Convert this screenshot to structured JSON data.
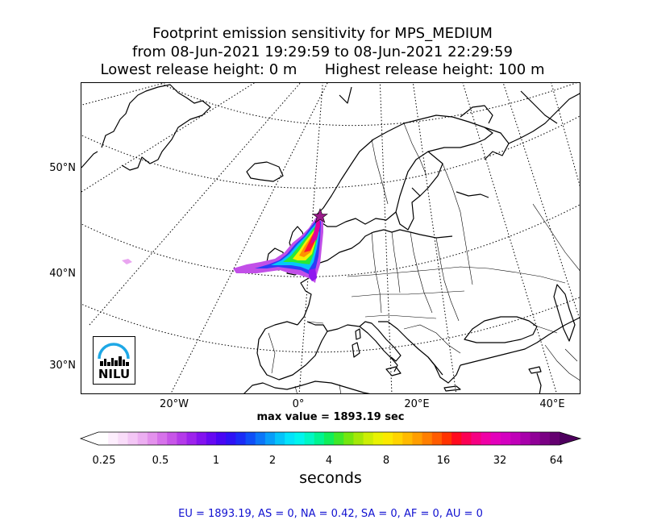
{
  "title": {
    "line1": "Footprint emission sensitivity for MPS_MEDIUM",
    "line2": "from 08-Jun-2021 19:29:59 to 08-Jun-2021 22:29:59",
    "line3": "Lowest release height: 0 m      Highest release height: 100 m"
  },
  "map": {
    "lat_labels": [
      "50°N",
      "40°N",
      "30°N"
    ],
    "lon_labels": [
      "20°W",
      "0°",
      "20°E",
      "40°E"
    ],
    "coastline_color": "#000000",
    "border_color": "#000000",
    "graticule_style": "dotted"
  },
  "max_value_text": "max value = 1893.19 sec",
  "colorbar": {
    "tick_labels": [
      "0.25",
      "0.5",
      "1",
      "2",
      "4",
      "8",
      "16",
      "32",
      "64"
    ],
    "label": "seconds",
    "colors": [
      "#ffffff",
      "#fdeefd",
      "#f9dcf9",
      "#f3c6f5",
      "#ecaef1",
      "#e391ec",
      "#d672ea",
      "#c755e8",
      "#b43ae9",
      "#9d23ec",
      "#8312ef",
      "#6609f2",
      "#4806f4",
      "#2d12f5",
      "#1a2cf6",
      "#0f4ff7",
      "#0b76f8",
      "#089df9",
      "#05c3fa",
      "#03e3fb",
      "#00f5ee",
      "#00f7c4",
      "#00f491",
      "#10ee5a",
      "#3fe829",
      "#74e60f",
      "#a4e808",
      "#ccee05",
      "#e9f202",
      "#fbe900",
      "#ffd400",
      "#ffba00",
      "#ff9e00",
      "#ff7f00",
      "#ff5c00",
      "#ff3300",
      "#ff0a1e",
      "#fb0053",
      "#f50082",
      "#ef00a6",
      "#e300bb",
      "#d400c0",
      "#c000b8",
      "#a800ab",
      "#900097",
      "#7a0084",
      "#640070"
    ],
    "extend_right_color": "#4e005e"
  },
  "summary_text": "EU = 1893.19,  AS = 0,  NA = 0.42,  SA = 0,  AF = 0,  AU = 0",
  "summary_color": "#1010d0",
  "logo": {
    "text": "NILU",
    "arc_color": "#1ea8e6"
  },
  "release_marker": {
    "symbol": "star",
    "color": "#9a1a8a"
  }
}
